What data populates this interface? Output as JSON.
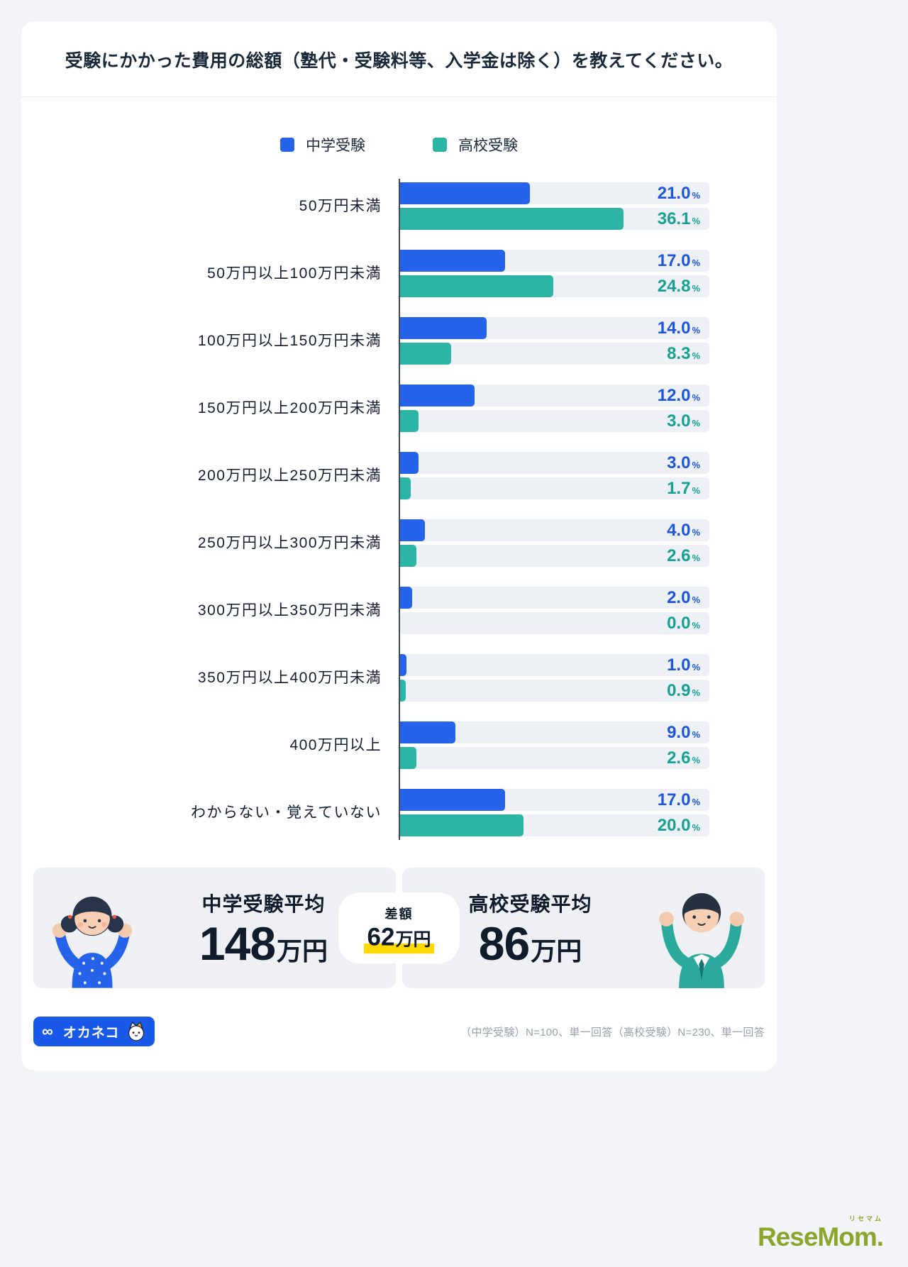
{
  "title": "受験にかかった費用の総額（塾代・受験料等、入学金は除く）を教えてください。",
  "chart_data": {
    "type": "bar",
    "orientation": "horizontal",
    "title": "受験にかかった費用の総額（塾代・受験料等、入学金は除く）",
    "categories": [
      "50万円未満",
      "50万円以上100万円未満",
      "100万円以上150万円未満",
      "150万円以上200万円未満",
      "200万円以上250万円未満",
      "250万円以上300万円未満",
      "300万円以上350万円未満",
      "350万円以上400万円未満",
      "400万円以上",
      "わからない・覚えていない"
    ],
    "series": [
      {
        "name": "中学受験",
        "color": "#2563eb",
        "label_color": "#1d55dd",
        "values": [
          21.0,
          17.0,
          14.0,
          12.0,
          3.0,
          4.0,
          2.0,
          1.0,
          9.0,
          17.0
        ]
      },
      {
        "name": "高校受験",
        "color": "#2cb5a5",
        "label_color": "#17a093",
        "values": [
          36.1,
          24.8,
          8.3,
          3.0,
          1.7,
          2.6,
          0.0,
          0.9,
          2.6,
          20.0
        ]
      }
    ],
    "value_suffix": "%",
    "xlim": [
      0,
      50
    ],
    "legend_position": "top",
    "grid": false
  },
  "summary": {
    "left": {
      "label": "中学受験平均",
      "value": "148",
      "unit": "万円"
    },
    "diff": {
      "label": "差額",
      "value": "62",
      "unit": "万円"
    },
    "right": {
      "label": "高校受験平均",
      "value": "86",
      "unit": "万円"
    }
  },
  "footer": {
    "logo_text": "オカネコ",
    "note": "（中学受験）N=100、単一回答（高校受験）N=230、単一回答"
  },
  "brand": {
    "name": "ReseMom.",
    "sub": "リセマム"
  },
  "colors": {
    "chugaku_blue": "#2563eb",
    "koko_teal": "#2cb5a5",
    "highlight_yellow": "#ffd900",
    "okaneko_blue": "#1859ea",
    "resemom_green": "#8aa62b"
  }
}
